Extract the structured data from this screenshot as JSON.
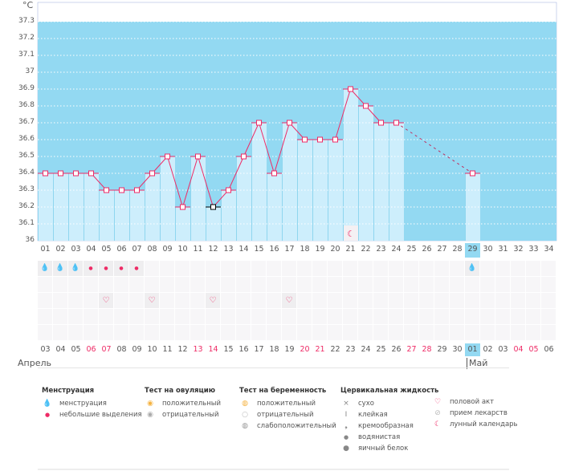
{
  "unit": "°C",
  "y_ticks": [
    "37.3",
    "37.2",
    "37.1",
    "37",
    "36.9",
    "36.8",
    "36.7",
    "36.6",
    "36.5",
    "36.4",
    "36.3",
    "36.2",
    "36.1",
    "36"
  ],
  "cycle_days": [
    "01",
    "02",
    "03",
    "04",
    "05",
    "06",
    "07",
    "08",
    "09",
    "10",
    "11",
    "12",
    "13",
    "14",
    "15",
    "16",
    "17",
    "18",
    "19",
    "20",
    "21",
    "22",
    "23",
    "24",
    "25",
    "26",
    "27",
    "28",
    "29",
    "30",
    "31",
    "32",
    "33",
    "34"
  ],
  "selected_cycle_day": "29",
  "temperatures": [
    36.4,
    36.4,
    36.4,
    36.4,
    36.3,
    36.3,
    36.3,
    36.4,
    36.5,
    36.2,
    36.5,
    36.2,
    36.3,
    36.5,
    36.7,
    36.4,
    36.7,
    36.6,
    36.6,
    36.6,
    36.9,
    36.8,
    36.7,
    36.7,
    null,
    null,
    null,
    null,
    36.4,
    null,
    null,
    null,
    null,
    null
  ],
  "highlighted_temp_day": 12,
  "moon_day": 21,
  "menstruation": {
    "heavy_days": [
      1,
      2,
      3,
      29
    ],
    "light_days": [
      4,
      5,
      6,
      7
    ]
  },
  "intercourse_days": [
    5,
    8,
    12,
    17
  ],
  "dates": [
    {
      "d": "03",
      "we": false
    },
    {
      "d": "04",
      "we": false
    },
    {
      "d": "05",
      "we": false
    },
    {
      "d": "06",
      "we": true
    },
    {
      "d": "07",
      "we": true
    },
    {
      "d": "08",
      "we": false
    },
    {
      "d": "09",
      "we": false
    },
    {
      "d": "10",
      "we": false
    },
    {
      "d": "11",
      "we": false
    },
    {
      "d": "12",
      "we": false
    },
    {
      "d": "13",
      "we": true
    },
    {
      "d": "14",
      "we": true
    },
    {
      "d": "15",
      "we": false
    },
    {
      "d": "16",
      "we": false
    },
    {
      "d": "17",
      "we": false
    },
    {
      "d": "18",
      "we": false
    },
    {
      "d": "19",
      "we": false
    },
    {
      "d": "20",
      "we": true
    },
    {
      "d": "21",
      "we": true
    },
    {
      "d": "22",
      "we": false
    },
    {
      "d": "23",
      "we": false
    },
    {
      "d": "24",
      "we": false
    },
    {
      "d": "25",
      "we": false
    },
    {
      "d": "26",
      "we": false
    },
    {
      "d": "27",
      "we": true
    },
    {
      "d": "28",
      "we": true
    },
    {
      "d": "29",
      "we": false
    },
    {
      "d": "30",
      "we": false
    },
    {
      "d": "01",
      "we": false
    },
    {
      "d": "02",
      "we": false
    },
    {
      "d": "03",
      "we": false
    },
    {
      "d": "04",
      "we": true
    },
    {
      "d": "05",
      "we": true
    },
    {
      "d": "06",
      "we": false
    }
  ],
  "months": {
    "april": "Апрель",
    "may": "Май"
  },
  "colors": {
    "bg": "#93d9f2",
    "bar": "#cdeefc",
    "line": "#ee2b66"
  },
  "legend": {
    "menstruation": {
      "title": "Менструация",
      "items": [
        "менструация",
        "небольшие выделения"
      ]
    },
    "ovulation": {
      "title": "Тест на овуляцию",
      "items": [
        "положительный",
        "отрицательный"
      ]
    },
    "pregnancy": {
      "title": "Тест на беременность",
      "items": [
        "положительный",
        "отрицательный",
        "слабоположительный"
      ]
    },
    "cervical": {
      "title": "Цервикальная жидкость",
      "items": [
        "сухо",
        "клейкая",
        "кремообразная",
        "водянистая",
        "яичный белок"
      ]
    },
    "other": {
      "items": [
        "половой акт",
        "прием лекарств",
        "лунный календарь"
      ]
    }
  }
}
